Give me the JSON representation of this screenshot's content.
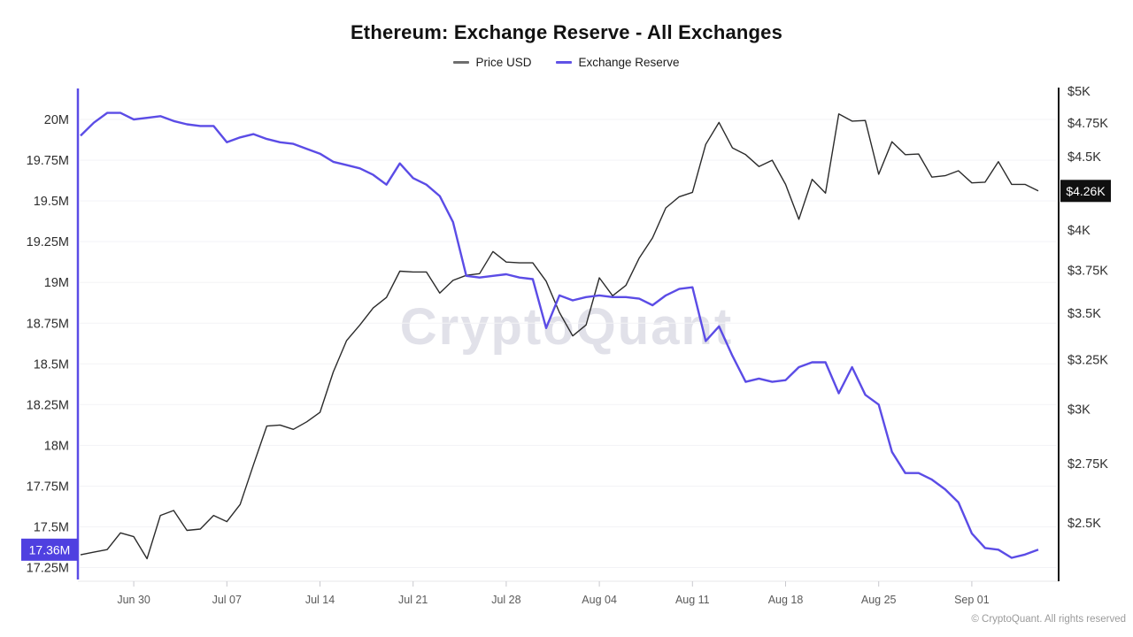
{
  "branding": {
    "watermark": "CryptoQuant",
    "copyright": "© CryptoQuant. All rights reserved"
  },
  "chart_data": {
    "type": "line",
    "title": "Ethereum: Exchange Reserve - All Exchanges",
    "legend_position": "top",
    "grid": "horizontal-faint",
    "right_scale": "log",
    "left_scale": "linear",
    "colors": {
      "grid": "#f3f3f6",
      "axis_baseline": "#e7e7ea",
      "tick": "#c9c9ce",
      "axis_label": "#2f2f2f",
      "x_label": "#5a5a5a",
      "left_spine": "#5b4ce6",
      "right_spine": "#141414",
      "price_badge_bg": "#101010",
      "reserve_badge_bg": "#4f40e0",
      "badge_text": "#ffffff"
    },
    "x_dates": [
      "Jun 26",
      "Jun 27",
      "Jun 28",
      "Jun 29",
      "Jun 30",
      "Jul 01",
      "Jul 02",
      "Jul 03",
      "Jul 04",
      "Jul 05",
      "Jul 06",
      "Jul 07",
      "Jul 08",
      "Jul 09",
      "Jul 10",
      "Jul 11",
      "Jul 12",
      "Jul 13",
      "Jul 14",
      "Jul 15",
      "Jul 16",
      "Jul 17",
      "Jul 18",
      "Jul 19",
      "Jul 20",
      "Jul 21",
      "Jul 22",
      "Jul 23",
      "Jul 24",
      "Jul 25",
      "Jul 26",
      "Jul 27",
      "Jul 28",
      "Jul 29",
      "Jul 30",
      "Jul 31",
      "Aug 01",
      "Aug 02",
      "Aug 03",
      "Aug 04",
      "Aug 05",
      "Aug 06",
      "Aug 07",
      "Aug 08",
      "Aug 09",
      "Aug 10",
      "Aug 11",
      "Aug 12",
      "Aug 13",
      "Aug 14",
      "Aug 15",
      "Aug 16",
      "Aug 17",
      "Aug 18",
      "Aug 19",
      "Aug 20",
      "Aug 21",
      "Aug 22",
      "Aug 23",
      "Aug 24",
      "Aug 25",
      "Aug 26",
      "Aug 27",
      "Aug 28",
      "Aug 29",
      "Aug 30",
      "Aug 31",
      "Sep 01",
      "Sep 02",
      "Sep 03",
      "Sep 04",
      "Sep 05",
      "Sep 06"
    ],
    "x_ticks": [
      {
        "label": "Jun 30",
        "i": 4
      },
      {
        "label": "Jul 07",
        "i": 11
      },
      {
        "label": "Jul 14",
        "i": 18
      },
      {
        "label": "Jul 21",
        "i": 25
      },
      {
        "label": "Jul 28",
        "i": 32
      },
      {
        "label": "Aug 04",
        "i": 39
      },
      {
        "label": "Aug 11",
        "i": 46
      },
      {
        "label": "Aug 18",
        "i": 53
      },
      {
        "label": "Aug 25",
        "i": 60
      },
      {
        "label": "Sep 01",
        "i": 67
      }
    ],
    "left_ticks": [
      {
        "label": "20M",
        "v": 20
      },
      {
        "label": "19.75M",
        "v": 19.75
      },
      {
        "label": "19.5M",
        "v": 19.5
      },
      {
        "label": "19.25M",
        "v": 19.25
      },
      {
        "label": "19M",
        "v": 19
      },
      {
        "label": "18.75M",
        "v": 18.75
      },
      {
        "label": "18.5M",
        "v": 18.5
      },
      {
        "label": "18.25M",
        "v": 18.25
      },
      {
        "label": "18M",
        "v": 18
      },
      {
        "label": "17.75M",
        "v": 17.75
      },
      {
        "label": "17.5M",
        "v": 17.5
      },
      {
        "label": "17.25M",
        "v": 17.25
      }
    ],
    "right_ticks": [
      {
        "label": "$5K",
        "v": 5000
      },
      {
        "label": "$4.75K",
        "v": 4750
      },
      {
        "label": "$4.5K",
        "v": 4500
      },
      {
        "label": "$4K",
        "v": 4000
      },
      {
        "label": "$3.75K",
        "v": 3750
      },
      {
        "label": "$3.5K",
        "v": 3500
      },
      {
        "label": "$3.25K",
        "v": 3250
      },
      {
        "label": "$3K",
        "v": 3000
      },
      {
        "label": "$2.75K",
        "v": 2750
      },
      {
        "label": "$2.5K",
        "v": 2500
      }
    ],
    "series": [
      {
        "name": "Price USD",
        "axis": "right",
        "color": "#2b2b2b",
        "legend_color": "#6e6e6e",
        "values": [
          2375,
          2385,
          2395,
          2460,
          2445,
          2360,
          2530,
          2550,
          2470,
          2475,
          2530,
          2505,
          2575,
          2745,
          2920,
          2925,
          2905,
          2940,
          2985,
          3185,
          3350,
          3435,
          3530,
          3590,
          3745,
          3740,
          3740,
          3615,
          3690,
          3720,
          3730,
          3865,
          3800,
          3795,
          3795,
          3685,
          3505,
          3375,
          3435,
          3705,
          3600,
          3660,
          3825,
          3950,
          4145,
          4220,
          4250,
          4590,
          4755,
          4565,
          4515,
          4430,
          4475,
          4305,
          4070,
          4340,
          4245,
          4820,
          4765,
          4770,
          4375,
          4610,
          4515,
          4520,
          4355,
          4365,
          4400,
          4315,
          4320,
          4465,
          4305,
          4305,
          4260
        ]
      },
      {
        "name": "Exchange Reserve",
        "axis": "left",
        "color": "#5b4ce6",
        "legend_color": "#6052e6",
        "values": [
          19.9,
          19.98,
          20.04,
          20.04,
          20.0,
          20.01,
          20.02,
          19.99,
          19.97,
          19.96,
          19.96,
          19.86,
          19.89,
          19.91,
          19.88,
          19.86,
          19.85,
          19.82,
          19.79,
          19.74,
          19.72,
          19.7,
          19.66,
          19.6,
          19.73,
          19.64,
          19.6,
          19.53,
          19.37,
          19.04,
          19.03,
          19.04,
          19.05,
          19.03,
          19.02,
          18.72,
          18.92,
          18.89,
          18.91,
          18.92,
          18.91,
          18.91,
          18.9,
          18.86,
          18.92,
          18.96,
          18.97,
          18.64,
          18.73,
          18.55,
          18.39,
          18.41,
          18.39,
          18.4,
          18.48,
          18.51,
          18.51,
          18.32,
          18.48,
          18.31,
          18.25,
          17.96,
          17.83,
          17.83,
          17.79,
          17.73,
          17.65,
          17.46,
          17.37,
          17.36,
          17.31,
          17.33,
          17.36
        ]
      }
    ],
    "current": {
      "price": 4260,
      "price_label": "$4.26K",
      "reserve": 17.36,
      "reserve_label": "17.36M"
    }
  }
}
